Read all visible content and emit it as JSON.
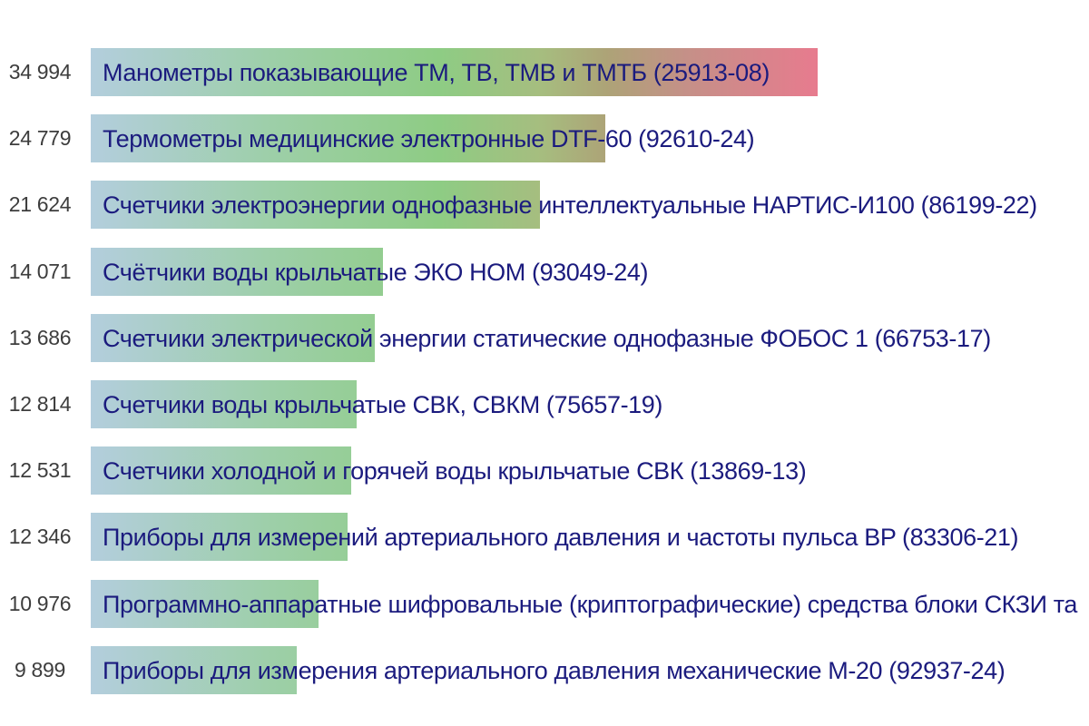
{
  "chart_data": {
    "type": "bar",
    "orientation": "horizontal",
    "title": "",
    "xlabel": "",
    "ylabel": "",
    "xlim": [
      0,
      34994
    ],
    "grid": false,
    "legend": false,
    "categories": [
      "Манометры показывающие ТМ, ТВ, ТМВ и ТМТБ (25913-08)",
      "Термометры медицинские электронные DTF-60 (92610-24)",
      "Счетчики электроэнергии однофазные интеллектуальные НАРТИС-И100 (86199-22)",
      "Счётчики воды крыльчатые ЭКО НОМ (93049-24)",
      "Счетчики электрической энергии статические однофазные ФОБОС 1 (66753-17)",
      "Счетчики воды крыльчатые СВК, СВКМ (75657-19)",
      "Счетчики холодной и горячей воды крыльчатые СВК (13869-13)",
      "Приборы для измерений артериального давления и частоты пульса BP (83306-21)",
      "Программно-аппаратные шифровальные (криптографические) средства блоки СКЗИ та",
      "Приборы для измерения артериального давления механические М-20 (92937-24)"
    ],
    "values": [
      34994,
      24779,
      21624,
      14071,
      13686,
      12814,
      12531,
      12346,
      10976,
      9899
    ],
    "value_labels": [
      "34 994",
      "24 779",
      "21 624",
      "14 071",
      "13 686",
      "12 814",
      "12 531",
      "12 346",
      "10 976",
      "9 899"
    ],
    "colors": {
      "bar_gradient_stops": [
        "#b3cedd",
        "#9dcfa8",
        "#8ecc84",
        "#a6bd7f",
        "#ada377",
        "#c59088",
        "#e77b8e"
      ],
      "category_label": "#1b1b7e",
      "value_label": "#3d3d3d",
      "background": "#ffffff"
    }
  }
}
